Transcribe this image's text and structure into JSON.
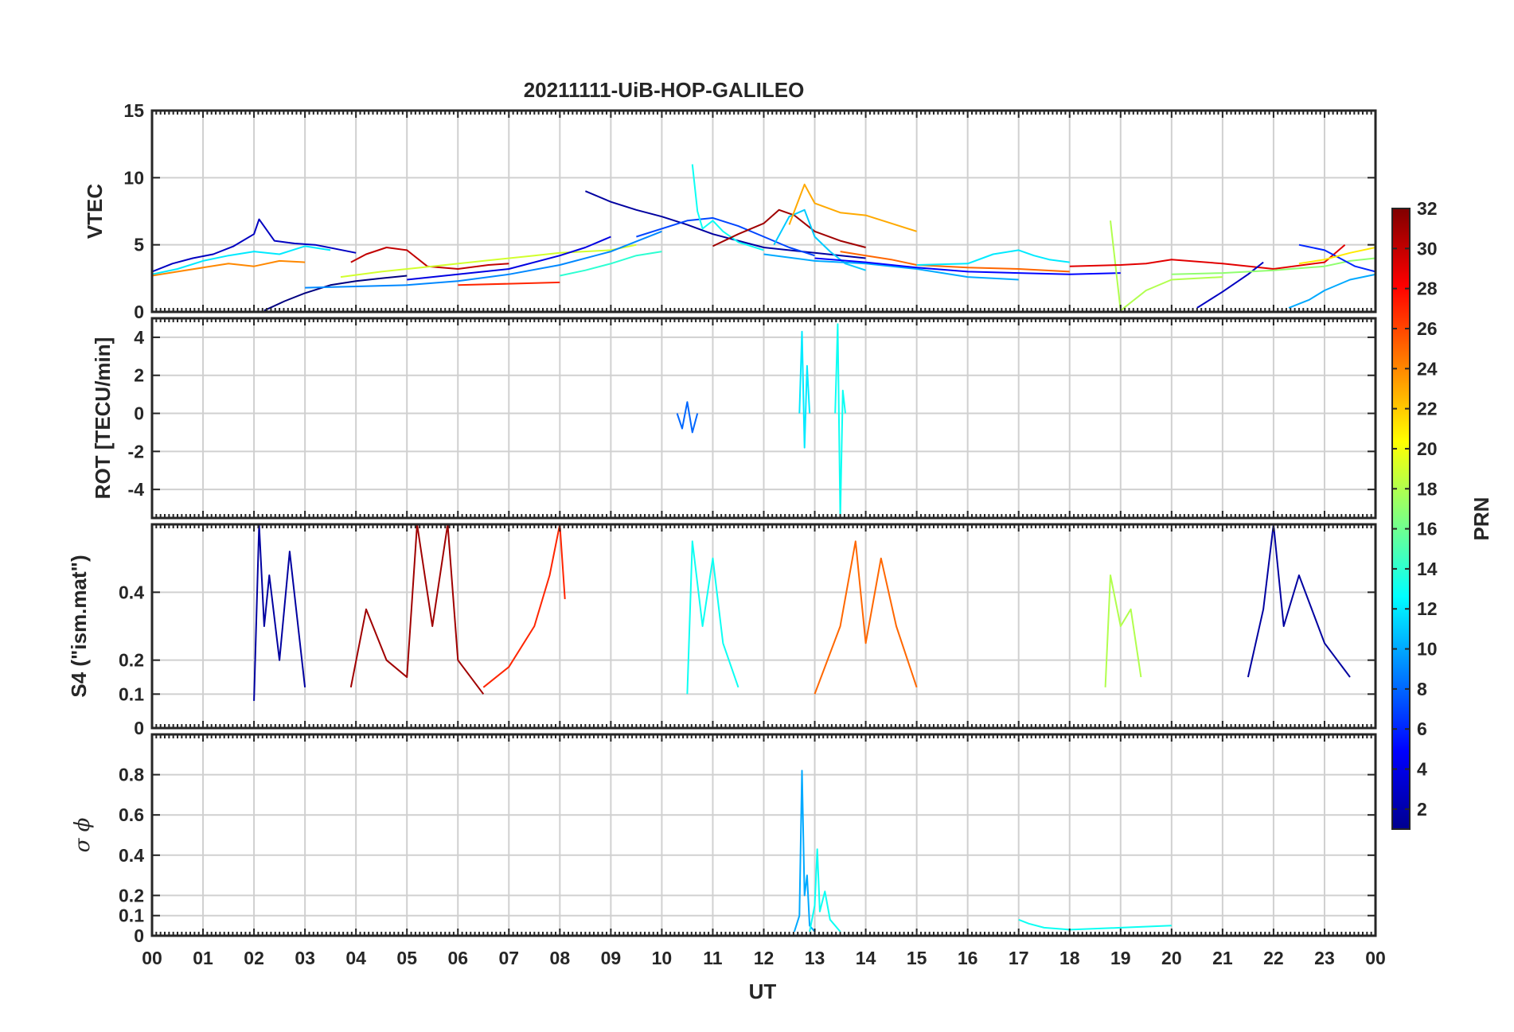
{
  "chart_data": [
    {
      "type": "line",
      "title": "20211111-UiB-HOP-GALILEO",
      "ylabel": "VTEC",
      "ylim": [
        0,
        15
      ],
      "yticks": [
        0,
        5,
        10,
        15
      ],
      "xlim": [
        0,
        24
      ],
      "grid": true,
      "series": [
        {
          "prn": 3,
          "x": [
            0.0,
            0.4,
            0.8,
            1.2,
            1.6,
            2.0,
            2.1,
            2.4,
            2.8,
            3.2,
            3.6,
            4.0
          ],
          "y": [
            3.0,
            3.6,
            4.0,
            4.3,
            4.9,
            5.8,
            6.9,
            5.3,
            5.1,
            5.0,
            4.7,
            4.4
          ]
        },
        {
          "prn": 12,
          "x": [
            0.0,
            0.5,
            1.0,
            1.5,
            2.0,
            2.5,
            3.0,
            3.5
          ],
          "y": [
            2.8,
            3.2,
            3.8,
            4.2,
            4.5,
            4.3,
            4.9,
            4.6
          ]
        },
        {
          "prn": 24,
          "x": [
            0.0,
            0.5,
            1.0,
            1.5,
            2.0,
            2.5,
            3.0
          ],
          "y": [
            2.7,
            3.0,
            3.3,
            3.6,
            3.4,
            3.8,
            3.7
          ]
        },
        {
          "prn": 1,
          "x": [
            2.2,
            2.6,
            3.0,
            3.5,
            4.0,
            4.5,
            5.0
          ],
          "y": [
            0.1,
            0.8,
            1.4,
            2.0,
            2.3,
            2.5,
            2.7
          ]
        },
        {
          "prn": 30,
          "x": [
            3.9,
            4.2,
            4.6,
            5.0,
            5.4,
            6.0,
            6.6,
            7.0
          ],
          "y": [
            3.7,
            4.3,
            4.8,
            4.6,
            3.4,
            3.2,
            3.5,
            3.6
          ]
        },
        {
          "prn": 19,
          "x": [
            3.7,
            4.5,
            5.5,
            6.5,
            7.5,
            8.0,
            9.0,
            9.5
          ],
          "y": [
            2.6,
            3.0,
            3.4,
            3.8,
            4.2,
            4.4,
            4.6,
            5.0
          ]
        },
        {
          "prn": 9,
          "x": [
            3.0,
            4.0,
            5.0,
            6.0,
            7.0,
            8.0,
            9.0,
            10.0
          ],
          "y": [
            1.8,
            1.9,
            2.0,
            2.3,
            2.8,
            3.5,
            4.5,
            6.0
          ]
        },
        {
          "prn": 4,
          "x": [
            5.0,
            6.0,
            7.0,
            8.0,
            8.5,
            9.0
          ],
          "y": [
            2.4,
            2.8,
            3.2,
            4.2,
            4.8,
            5.6
          ]
        },
        {
          "prn": 27,
          "x": [
            6.0,
            7.0,
            8.0
          ],
          "y": [
            2.0,
            2.1,
            2.2
          ]
        },
        {
          "prn": 2,
          "x": [
            8.5,
            9.0,
            9.5,
            10.0,
            10.5,
            11.0,
            11.5,
            12.0,
            13.0,
            14.0
          ],
          "y": [
            9.0,
            8.2,
            7.6,
            7.1,
            6.5,
            5.8,
            5.3,
            4.8,
            4.4,
            4.0
          ]
        },
        {
          "prn": 14,
          "x": [
            8.0,
            8.5,
            9.0,
            9.5,
            10.0
          ],
          "y": [
            2.7,
            3.1,
            3.6,
            4.2,
            4.5
          ]
        },
        {
          "prn": 7,
          "x": [
            9.5,
            10.0,
            10.5,
            11.0,
            11.5,
            12.0,
            12.5,
            13.0
          ],
          "y": [
            5.6,
            6.2,
            6.8,
            7.0,
            6.4,
            5.6,
            4.8,
            4.2
          ]
        },
        {
          "prn": 13,
          "x": [
            10.6,
            10.7,
            10.8,
            11.0,
            11.2,
            11.5,
            12.0
          ],
          "y": [
            11.0,
            7.5,
            6.2,
            6.8,
            6.0,
            5.2,
            4.6
          ]
        },
        {
          "prn": 31,
          "x": [
            11.0,
            11.5,
            12.0,
            12.3,
            12.6,
            13.0,
            13.5,
            14.0
          ],
          "y": [
            4.9,
            5.8,
            6.6,
            7.6,
            7.2,
            6.0,
            5.3,
            4.8
          ]
        },
        {
          "prn": 11,
          "x": [
            12.2,
            12.5,
            12.8,
            13.0,
            13.3,
            13.6,
            14.0
          ],
          "y": [
            5.0,
            7.1,
            7.6,
            5.6,
            4.5,
            3.6,
            3.1
          ]
        },
        {
          "prn": 23,
          "x": [
            12.5,
            12.8,
            13.0,
            13.5,
            14.0,
            14.5,
            15.0
          ],
          "y": [
            6.5,
            9.5,
            8.1,
            7.4,
            7.2,
            6.6,
            6.0
          ]
        },
        {
          "prn": 25,
          "x": [
            13.5,
            14.0,
            14.5,
            15.0,
            16.0,
            17.0,
            18.0
          ],
          "y": [
            4.5,
            4.2,
            3.9,
            3.5,
            3.3,
            3.2,
            3.0
          ]
        },
        {
          "prn": 10,
          "x": [
            12.0,
            13.0,
            14.0,
            15.0,
            16.0,
            17.0
          ],
          "y": [
            4.3,
            3.8,
            3.6,
            3.2,
            2.6,
            2.4
          ]
        },
        {
          "prn": 5,
          "x": [
            13.0,
            14.0,
            15.0,
            16.0,
            17.0,
            18.0,
            19.0
          ],
          "y": [
            4.0,
            3.7,
            3.3,
            3.0,
            2.9,
            2.8,
            2.9
          ]
        },
        {
          "prn": 12,
          "x": [
            15.0,
            16.0,
            16.5,
            17.0,
            17.3,
            17.6,
            18.0
          ],
          "y": [
            3.5,
            3.6,
            4.3,
            4.6,
            4.2,
            3.9,
            3.7
          ]
        },
        {
          "prn": 18,
          "x": [
            18.8,
            19.0,
            19.5,
            20.0,
            21.0
          ],
          "y": [
            6.8,
            0.1,
            1.6,
            2.4,
            2.6
          ]
        },
        {
          "prn": 29,
          "x": [
            18.0,
            19.0,
            19.5,
            20.0,
            21.0,
            22.0,
            23.0,
            23.4
          ],
          "y": [
            3.4,
            3.5,
            3.6,
            3.9,
            3.6,
            3.2,
            3.7,
            5.0
          ]
        },
        {
          "prn": 3,
          "x": [
            20.5,
            21.0,
            21.5,
            21.8
          ],
          "y": [
            0.3,
            1.5,
            2.8,
            3.7
          ]
        },
        {
          "prn": 17,
          "x": [
            20.0,
            21.0,
            22.0,
            23.0,
            23.5,
            24.0
          ],
          "y": [
            2.8,
            2.9,
            3.1,
            3.4,
            3.8,
            4.0
          ]
        },
        {
          "prn": 6,
          "x": [
            22.5,
            23.0,
            23.3,
            23.6,
            24.0
          ],
          "y": [
            5.0,
            4.6,
            4.0,
            3.4,
            3.0
          ]
        },
        {
          "prn": 10,
          "x": [
            22.3,
            22.7,
            23.0,
            23.5,
            24.0
          ],
          "y": [
            0.3,
            0.9,
            1.6,
            2.4,
            2.8
          ]
        },
        {
          "prn": 21,
          "x": [
            22.5,
            23.0,
            23.5,
            24.0
          ],
          "y": [
            3.6,
            3.9,
            4.4,
            4.8
          ]
        }
      ]
    },
    {
      "type": "line",
      "ylabel": "ROT [TECU/min]",
      "ylim": [
        -5.5,
        5.0
      ],
      "yticks": [
        -4,
        -2,
        0,
        2,
        4
      ],
      "xlim": [
        0,
        24
      ],
      "grid": true,
      "series": [
        {
          "prn": 12,
          "x": [
            12.7,
            12.75,
            12.8,
            12.85,
            12.9
          ],
          "y": [
            0,
            4.3,
            -1.8,
            2.5,
            0
          ]
        },
        {
          "prn": 13,
          "x": [
            13.4,
            13.45,
            13.5,
            13.55,
            13.6
          ],
          "y": [
            0,
            4.7,
            -5.5,
            1.2,
            0
          ]
        },
        {
          "prn": 8,
          "x": [
            10.3,
            10.4,
            10.5,
            10.6,
            10.7
          ],
          "y": [
            0,
            -0.8,
            0.6,
            -1.0,
            0
          ]
        }
      ]
    },
    {
      "type": "line",
      "ylabel": "S4 (\"ism.mat\")",
      "ylim": [
        0,
        0.6
      ],
      "yticks": [
        0,
        0.1,
        0.2,
        0.4
      ],
      "xlim": [
        0,
        24
      ],
      "grid": true,
      "series": [
        {
          "prn": 2,
          "x": [
            2.0,
            2.1,
            2.2,
            2.3,
            2.5,
            2.7,
            3.0
          ],
          "y": [
            0.08,
            0.6,
            0.3,
            0.45,
            0.2,
            0.52,
            0.12
          ]
        },
        {
          "prn": 31,
          "x": [
            3.9,
            4.2,
            4.6,
            5.0,
            5.2,
            5.5,
            5.8,
            6.0,
            6.5
          ],
          "y": [
            0.12,
            0.35,
            0.2,
            0.15,
            0.6,
            0.3,
            0.6,
            0.2,
            0.1
          ]
        },
        {
          "prn": 27,
          "x": [
            6.5,
            7.0,
            7.5,
            7.8,
            8.0,
            8.1
          ],
          "y": [
            0.12,
            0.18,
            0.3,
            0.45,
            0.6,
            0.38
          ]
        },
        {
          "prn": 13,
          "x": [
            10.5,
            10.6,
            10.8,
            11.0,
            11.2,
            11.5
          ],
          "y": [
            0.1,
            0.55,
            0.3,
            0.5,
            0.25,
            0.12
          ]
        },
        {
          "prn": 25,
          "x": [
            13.0,
            13.5,
            13.8,
            14.0,
            14.3,
            14.6,
            15.0
          ],
          "y": [
            0.1,
            0.3,
            0.55,
            0.25,
            0.5,
            0.3,
            0.12
          ]
        },
        {
          "prn": 2,
          "x": [
            21.5,
            21.8,
            22.0,
            22.2,
            22.5,
            23.0,
            23.5
          ],
          "y": [
            0.15,
            0.35,
            0.6,
            0.3,
            0.45,
            0.25,
            0.15
          ]
        },
        {
          "prn": 18,
          "x": [
            18.7,
            18.8,
            19.0,
            19.2,
            19.4
          ],
          "y": [
            0.12,
            0.45,
            0.3,
            0.35,
            0.15
          ]
        }
      ]
    },
    {
      "type": "line",
      "ylabel": "σ ϕ",
      "ylim": [
        0,
        1.0
      ],
      "yticks": [
        0,
        0.1,
        0.2,
        0.4,
        0.6,
        0.8
      ],
      "xlim": [
        0,
        24
      ],
      "grid": true,
      "series": [
        {
          "prn": 10,
          "x": [
            12.6,
            12.7,
            12.75,
            12.8,
            12.85,
            12.9,
            13.0
          ],
          "y": [
            0.02,
            0.1,
            0.82,
            0.2,
            0.3,
            0.05,
            0.02
          ]
        },
        {
          "prn": 13,
          "x": [
            12.9,
            13.0,
            13.05,
            13.1,
            13.2,
            13.3,
            13.5
          ],
          "y": [
            0.02,
            0.15,
            0.43,
            0.12,
            0.22,
            0.08,
            0.02
          ]
        },
        {
          "prn": 13,
          "x": [
            17.0,
            17.2,
            17.5,
            18.0,
            19.0,
            20.0
          ],
          "y": [
            0.08,
            0.06,
            0.04,
            0.03,
            0.04,
            0.05
          ]
        }
      ]
    }
  ],
  "xaxis": {
    "label": "UT",
    "ticks": [
      "00",
      "01",
      "02",
      "03",
      "04",
      "05",
      "06",
      "07",
      "08",
      "09",
      "10",
      "11",
      "12",
      "13",
      "14",
      "15",
      "16",
      "17",
      "18",
      "19",
      "20",
      "21",
      "22",
      "23",
      "00"
    ]
  },
  "colorbar": {
    "label": "PRN",
    "range": [
      1,
      32
    ],
    "ticks": [
      2,
      4,
      6,
      8,
      10,
      12,
      14,
      16,
      18,
      20,
      22,
      24,
      26,
      28,
      30,
      32
    ],
    "colormap": "jet"
  }
}
